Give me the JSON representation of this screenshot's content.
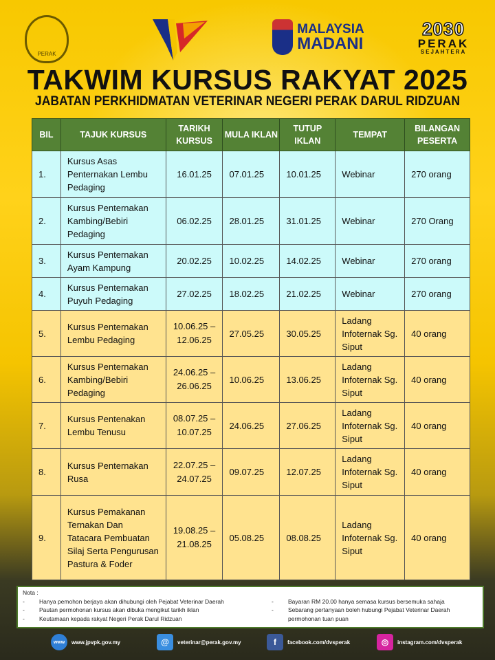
{
  "logos": {
    "perak_crest": "PERAK",
    "jata": "jata-negara",
    "madani": [
      "MALAYSIA",
      "MADANI"
    ],
    "perak2030": [
      "2030",
      "PERAK",
      "SEJAHTERA"
    ]
  },
  "title": "TAKWIM KURSUS RAKYAT 2025",
  "subtitle": "JABATAN PERKHIDMATAN VETERINAR NEGERI PERAK DARUL RIDZUAN",
  "colors": {
    "header": "#548235",
    "webinar_row": "#ccfafa",
    "ladang_row": "#ffe38f"
  },
  "table": {
    "headers": [
      "BIL",
      "TAJUK KURSUS",
      "TARIKH KURSUS",
      "MULA IKLAN",
      "TUTUP IKLAN",
      "TEMPAT",
      "BILANGAN PESERTA"
    ],
    "rows": [
      {
        "bil": "1.",
        "tajuk": "Kursus Asas Penternakan Lembu Pedaging",
        "tarikh": "16.01.25",
        "mula": "07.01.25",
        "tutup": "10.01.25",
        "tempat": "Webinar",
        "peserta": "270 orang"
      },
      {
        "bil": "2.",
        "tajuk": "Kursus Penternakan Kambing/Bebiri Pedaging",
        "tarikh": "06.02.25",
        "mula": "28.01.25",
        "tutup": "31.01.25",
        "tempat": "Webinar",
        "peserta": "270 Orang"
      },
      {
        "bil": "3.",
        "tajuk": "Kursus Penternakan Ayam Kampung",
        "tarikh": "20.02.25",
        "mula": "10.02.25",
        "tutup": "14.02.25",
        "tempat": "Webinar",
        "peserta": "270 orang"
      },
      {
        "bil": "4.",
        "tajuk": "Kursus Penternakan Puyuh Pedaging",
        "tarikh": "27.02.25",
        "mula": "18.02.25",
        "tutup": "21.02.25",
        "tempat": "Webinar",
        "peserta": "270 orang"
      },
      {
        "bil": "5.",
        "tajuk": "Kursus Penternakan Lembu Pedaging",
        "tarikh": "10.06.25 – 12.06.25",
        "mula": "27.05.25",
        "tutup": "30.05.25",
        "tempat": "Ladang Infoternak Sg. Siput",
        "peserta": "40 orang"
      },
      {
        "bil": "6.",
        "tajuk": "Kursus Penternakan Kambing/Bebiri Pedaging",
        "tarikh": "24.06.25 – 26.06.25",
        "mula": "10.06.25",
        "tutup": "13.06.25",
        "tempat": "Ladang Infoternak Sg. Siput",
        "peserta": "40 orang"
      },
      {
        "bil": "7.",
        "tajuk": "Kursus Pentenakan Lembu Tenusu",
        "tarikh": "08.07.25 – 10.07.25",
        "mula": "24.06.25",
        "tutup": "27.06.25",
        "tempat": "Ladang Infoternak Sg. Siput",
        "peserta": "40 orang"
      },
      {
        "bil": "8.",
        "tajuk": "Kursus Penternakan Rusa",
        "tarikh": "22.07.25 – 24.07.25",
        "mula": "09.07.25",
        "tutup": "12.07.25",
        "tempat": "Ladang Infoternak Sg. Siput",
        "peserta": "40 orang"
      },
      {
        "bil": "9.",
        "tajuk": "Kursus Pemakanan Ternakan Dan Tatacara Pembuatan Silaj Serta Pengurusan Pastura & Foder",
        "tarikh": "19.08.25 – 21.08.25",
        "mula": "05.08.25",
        "tutup": "08.08.25",
        "tempat": "Ladang Infoternak Sg. Siput",
        "peserta": "40 orang"
      }
    ]
  },
  "notes": {
    "label": "Nota :",
    "left": [
      "Hanya pemohon berjaya akan dihubungi oleh Pejabat Veterinar Daerah",
      "Pautan permohonan kursus akan dibuka mengikut tarikh iklan",
      "Keutamaan kepada rakyat Negeri Perak Darul Ridzuan"
    ],
    "right": [
      "Bayaran RM 20.00 hanya semasa kursus bersemuka sahaja",
      "Sebarang pertanyaan boleh hubungi Pejabat Veterinar Daerah permohonan tuan puan"
    ]
  },
  "footer": [
    {
      "icon": "globe-icon",
      "text": "www.jpvpk.gov.my",
      "color": "#2f7fd6"
    },
    {
      "icon": "email-icon",
      "text": "veterinar@perak.gov.my",
      "color": "#3a8ee0"
    },
    {
      "icon": "facebook-icon",
      "text": "facebook.com/dvsperak",
      "color": "#3b5998"
    },
    {
      "icon": "instagram-icon",
      "text": "instagram.com/dvsperak",
      "color": "#d6249f"
    }
  ]
}
